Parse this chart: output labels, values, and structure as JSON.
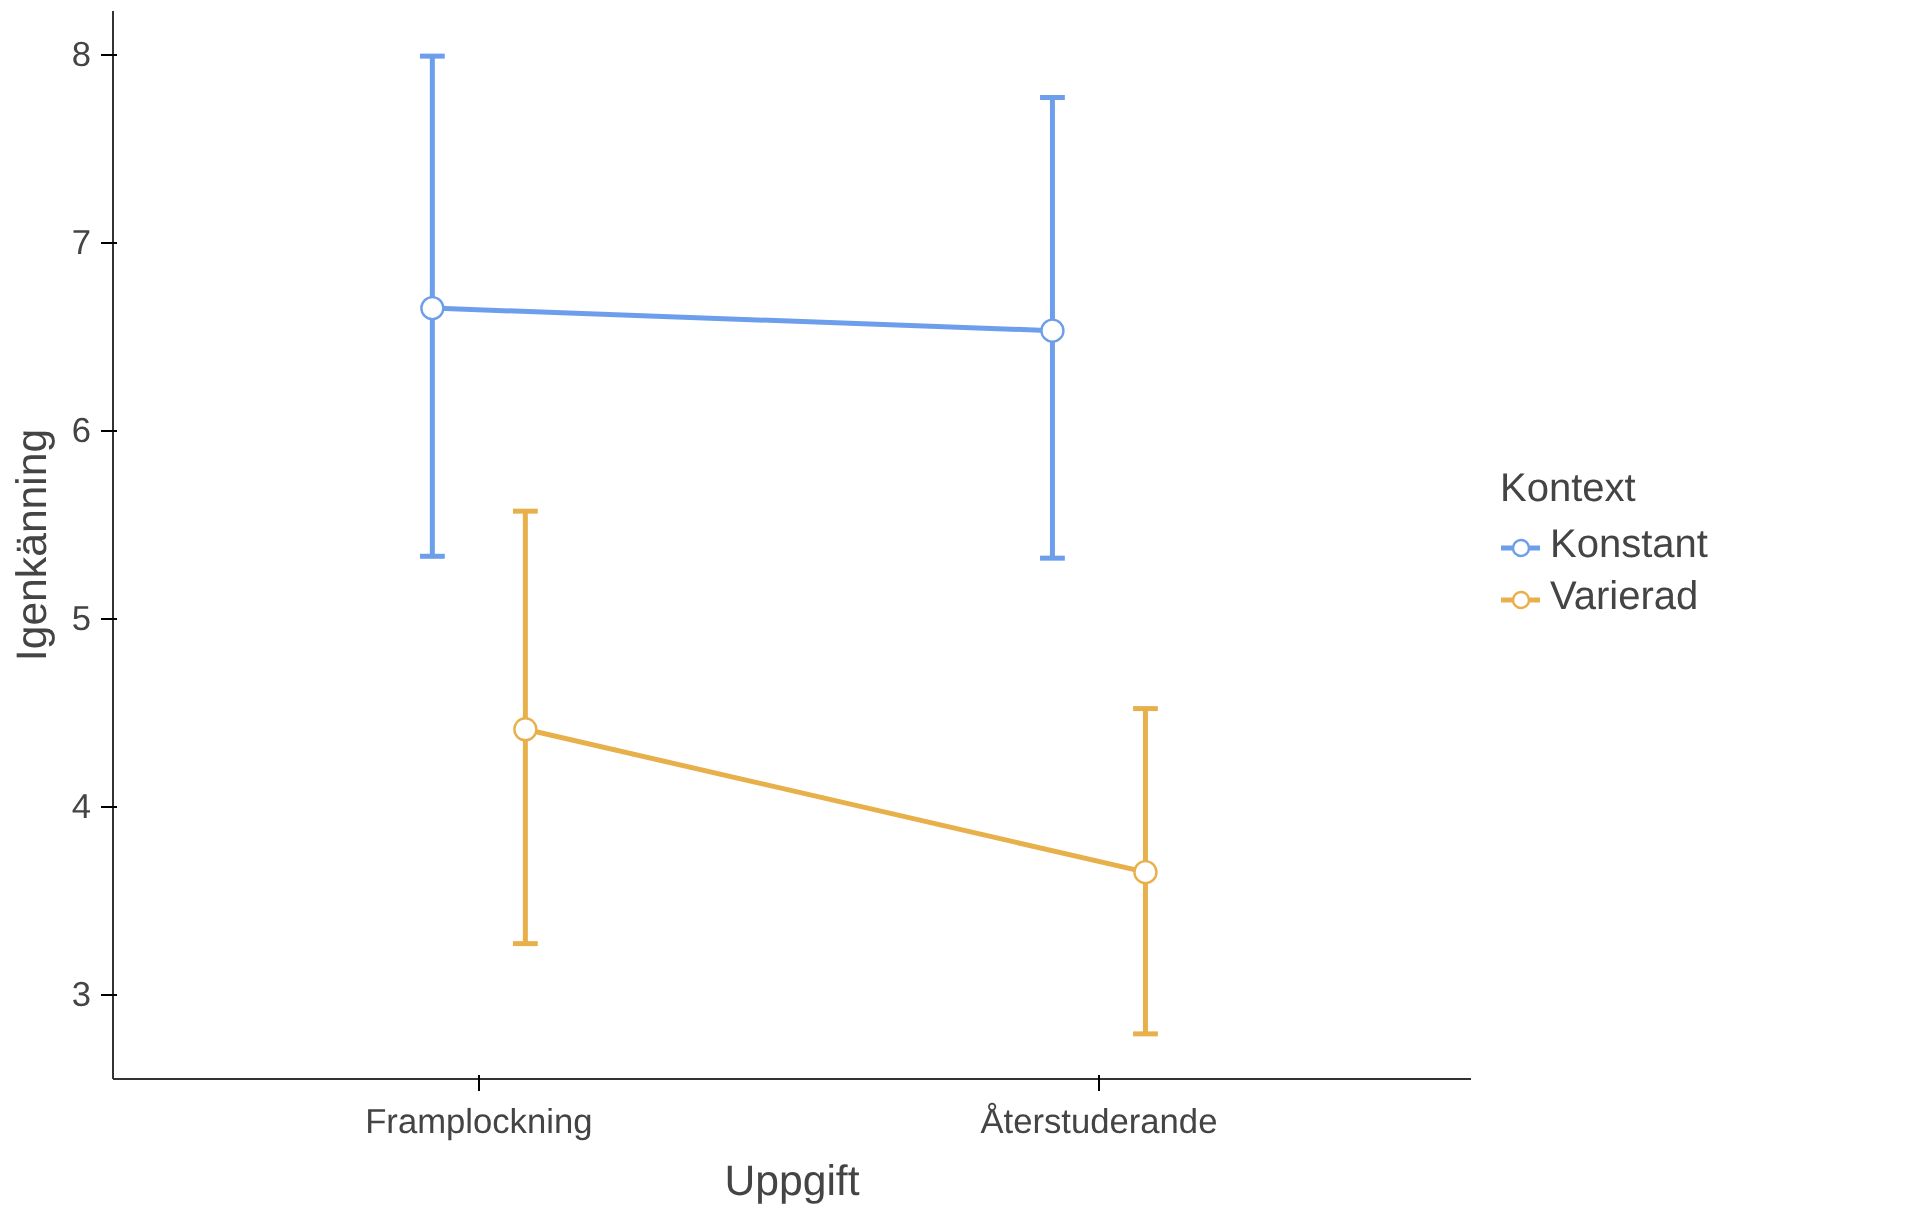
{
  "chart_data": {
    "type": "line",
    "xlabel": "Uppgift",
    "ylabel": "Igenkänning",
    "legend_title": "Kontext",
    "categories": [
      "Framplockning",
      "Återstuderande"
    ],
    "ylim": [
      2.55,
      8.23
    ],
    "yticks": [
      3,
      4,
      5,
      6,
      7,
      8
    ],
    "grid": false,
    "legend": "right",
    "marker": "circle",
    "line_style": "solid",
    "series": [
      {
        "name": "Konstant",
        "color": "#6d9eeb",
        "values": [
          6.65,
          6.53
        ],
        "errors": [
          [
            5.33,
            7.99
          ],
          [
            5.32,
            7.77
          ]
        ]
      },
      {
        "name": "Varierad",
        "color": "#e8b04a",
        "values": [
          4.41,
          3.65
        ],
        "errors": [
          [
            3.27,
            5.57
          ],
          [
            2.79,
            4.52
          ]
        ]
      }
    ]
  }
}
